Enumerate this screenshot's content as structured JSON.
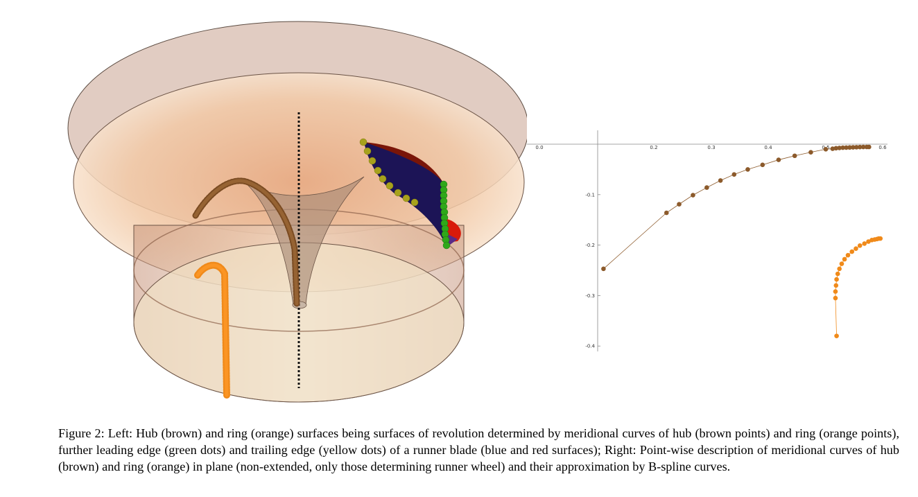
{
  "figure": {
    "caption": "Figure 2: Left: Hub (brown) and ring (orange) surfaces being surfaces of revolution determined by meridional curves of hub (brown points) and ring (orange points), further leading edge (green dots) and trailing edge (yellow dots) of a runner blade (blue and red surfaces); Right: Point-wise description of meridional curves of hub (brown) and ring (orange) in plane (non-extended, only those determining runner wheel) and their approximation by B-spline curves."
  },
  "colors": {
    "hub": "#8c5a2b",
    "ring": "#f08a1a",
    "leading_edge": "#2fa81a",
    "trailing_edge": "#a7a21c",
    "blade_blue": "#1c1456",
    "blade_red": "#d81a0a"
  },
  "chart_data": {
    "type": "scatter",
    "title": "",
    "xlabel": "",
    "ylabel": "",
    "xlim": [
      0.0,
      0.6
    ],
    "ylim": [
      -0.4,
      0.0
    ],
    "x_ticks": [
      "0.0",
      "0.2",
      "0.3",
      "0.4",
      "0.5",
      "0.6"
    ],
    "x_tick_values": [
      0.0,
      0.2,
      0.3,
      0.4,
      0.5,
      0.6
    ],
    "y_ticks": [
      "-0.1",
      "-0.2",
      "-0.3",
      "-0.4"
    ],
    "y_tick_values": [
      -0.1,
      -0.2,
      -0.3,
      -0.4
    ],
    "series": [
      {
        "color": "#8c5a2b",
        "x": [
          0.112,
          0.222,
          0.244,
          0.268,
          0.292,
          0.316,
          0.34,
          0.364,
          0.39,
          0.418,
          0.446,
          0.474,
          0.5,
          0.512,
          0.518,
          0.524,
          0.53,
          0.536,
          0.542,
          0.548,
          0.554,
          0.56,
          0.566,
          0.572,
          0.576
        ],
        "y": [
          -0.247,
          -0.136,
          -0.119,
          -0.101,
          -0.086,
          -0.072,
          -0.06,
          -0.05,
          -0.041,
          -0.031,
          -0.023,
          -0.016,
          -0.01,
          -0.009,
          -0.008,
          -0.0075,
          -0.007,
          -0.0068,
          -0.0065,
          -0.0062,
          -0.006,
          -0.0058,
          -0.0056,
          -0.0055,
          -0.0055
        ]
      },
      {
        "color": "#f08a1a",
        "x": [
          0.519,
          0.517,
          0.517,
          0.518,
          0.519,
          0.521,
          0.524,
          0.528,
          0.533,
          0.539,
          0.546,
          0.553,
          0.56,
          0.568,
          0.575,
          0.581,
          0.586,
          0.59,
          0.593,
          0.596
        ],
        "y": [
          -0.38,
          -0.305,
          -0.292,
          -0.28,
          -0.268,
          -0.257,
          -0.247,
          -0.237,
          -0.228,
          -0.22,
          -0.213,
          -0.207,
          -0.201,
          -0.197,
          -0.193,
          -0.19,
          -0.189,
          -0.188,
          -0.187,
          -0.187
        ]
      }
    ]
  }
}
